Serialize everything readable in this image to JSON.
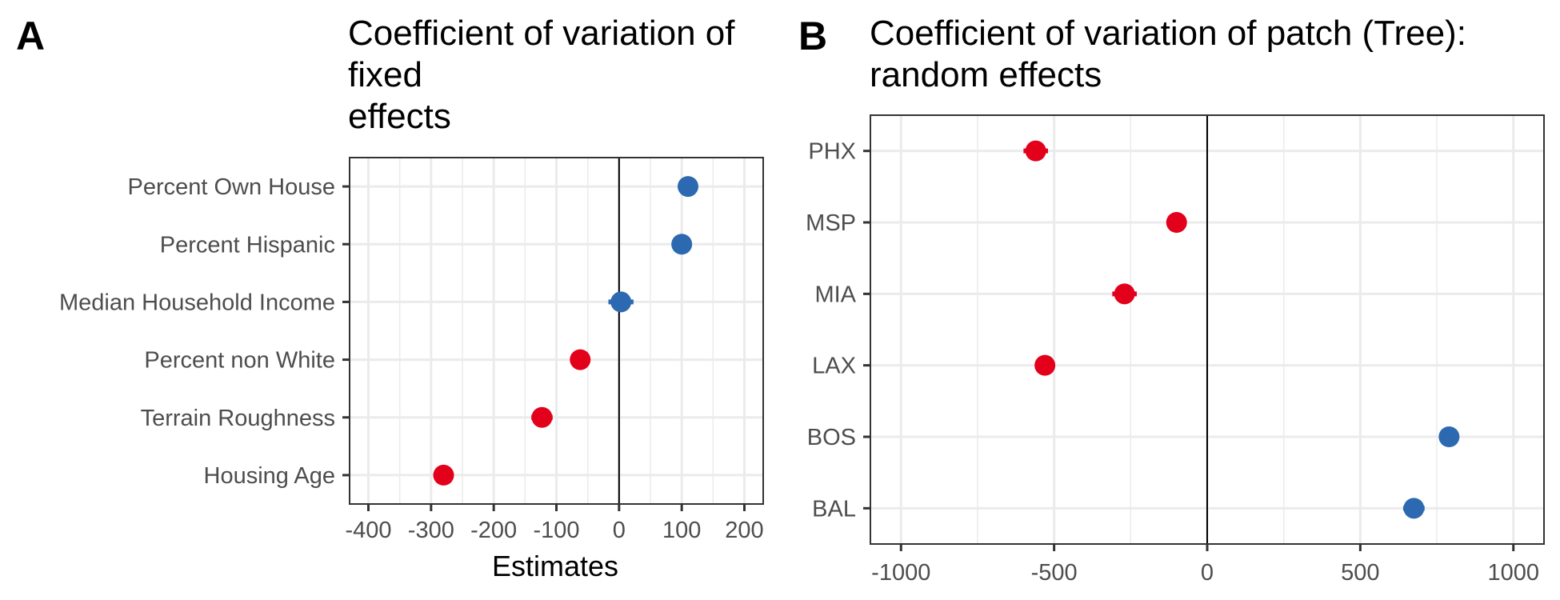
{
  "chart_data": [
    {
      "type": "scatter",
      "panel_label": "A",
      "title_lines": [
        "Coefficient of variation of",
        "fixed",
        "effects"
      ],
      "xlabel": "Estimates",
      "ylabel": "",
      "xlim": [
        -430,
        230
      ],
      "x_ticks": [
        -400,
        -300,
        -200,
        -100,
        0,
        100,
        200
      ],
      "x_tick_labels": [
        "-400",
        "-300",
        "-200",
        "-100",
        "0",
        "100",
        "200"
      ],
      "categories": [
        "Percent Own House",
        "Percent Hispanic",
        "Median Household Income",
        "Percent non White",
        "Terrain Roughness",
        "Housing Age"
      ],
      "points": [
        {
          "label": "Percent Own House",
          "value": 110,
          "low": 95,
          "high": 125,
          "sign": "positive"
        },
        {
          "label": "Percent Hispanic",
          "value": 100,
          "low": 85,
          "high": 115,
          "sign": "positive"
        },
        {
          "label": "Median Household Income",
          "value": 3,
          "low": -17,
          "high": 23,
          "sign": "positive"
        },
        {
          "label": "Percent non White",
          "value": -62,
          "low": -77,
          "high": -47,
          "sign": "negative"
        },
        {
          "label": "Terrain Roughness",
          "value": -123,
          "low": -140,
          "high": -106,
          "sign": "negative"
        },
        {
          "label": "Housing Age",
          "value": -280,
          "low": -296,
          "high": -264,
          "sign": "negative"
        }
      ],
      "zero_line": 0,
      "grid": true,
      "legend": "none"
    },
    {
      "type": "scatter",
      "panel_label": "B",
      "title_lines": [
        "Coefficient of variation of patch (Tree):",
        "random effects"
      ],
      "xlabel": "",
      "ylabel": "",
      "xlim": [
        -1100,
        1100
      ],
      "x_ticks": [
        -1000,
        -500,
        0,
        500,
        1000
      ],
      "x_tick_labels": [
        "-1000",
        "-500",
        "0",
        "500",
        "1000"
      ],
      "categories": [
        "PHX",
        "MSP",
        "MIA",
        "LAX",
        "BOS",
        "BAL"
      ],
      "points": [
        {
          "label": "PHX",
          "value": -560,
          "low": -600,
          "high": -520,
          "sign": "negative"
        },
        {
          "label": "MSP",
          "value": -100,
          "low": -125,
          "high": -75,
          "sign": "negative"
        },
        {
          "label": "MIA",
          "value": -270,
          "low": -310,
          "high": -230,
          "sign": "negative"
        },
        {
          "label": "LAX",
          "value": -530,
          "low": -550,
          "high": -510,
          "sign": "negative"
        },
        {
          "label": "BOS",
          "value": 790,
          "low": 775,
          "high": 805,
          "sign": "positive"
        },
        {
          "label": "BAL",
          "value": 675,
          "low": 640,
          "high": 710,
          "sign": "positive"
        }
      ],
      "zero_line": 0,
      "grid": true,
      "legend": "none"
    }
  ],
  "colors": {
    "positive": "#2c69b0",
    "negative": "#e3001b"
  }
}
